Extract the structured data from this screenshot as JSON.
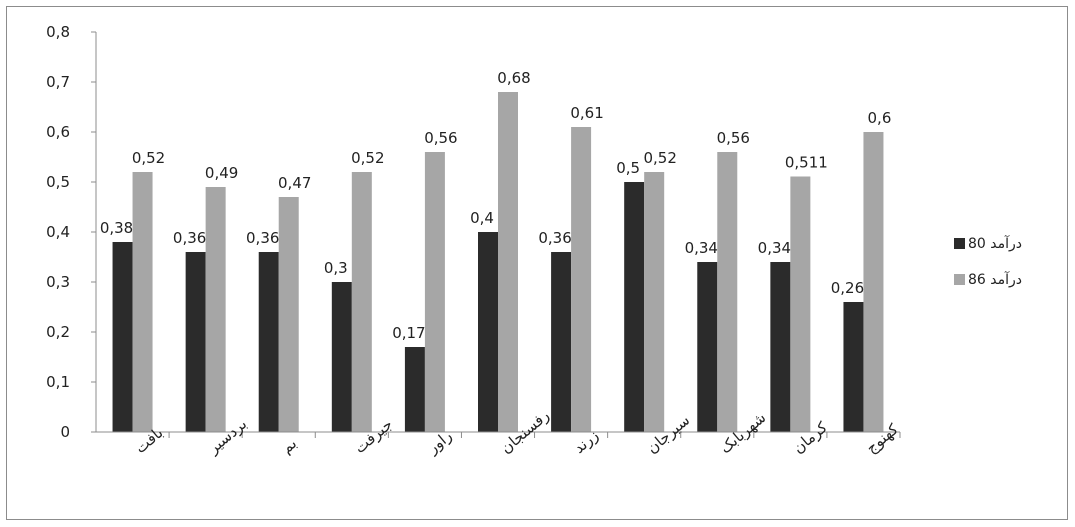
{
  "chart_data": {
    "type": "bar",
    "categories": [
      "بافت",
      "بردسير",
      "بم",
      "جيرفت",
      "راور",
      "رفسنجان",
      "زرند",
      "سيرجان",
      "شهربابک",
      "کرمان",
      "کهنوج"
    ],
    "series": [
      {
        "name": "درآمد 80",
        "values": [
          0.38,
          0.36,
          0.36,
          0.3,
          0.17,
          0.4,
          0.36,
          0.5,
          0.34,
          0.34,
          0.26
        ],
        "labels": [
          "0,38",
          "0,36",
          "0,36",
          "0,3",
          "0,17",
          "0,4",
          "0,36",
          "0,5",
          "0,34",
          "0,34",
          "0,26"
        ],
        "color": "#2b2b2b"
      },
      {
        "name": "درآمد 86",
        "values": [
          0.52,
          0.49,
          0.47,
          0.52,
          0.56,
          0.68,
          0.61,
          0.52,
          0.56,
          0.511,
          0.6
        ],
        "labels": [
          "0,52",
          "0,49",
          "0,47",
          "0,52",
          "0,56",
          "0,68",
          "0,61",
          "0,52",
          "0,56",
          "0,511",
          "0,6"
        ],
        "color": "#a6a6a6"
      }
    ],
    "yticks": [
      "0",
      "0,1",
      "0,2",
      "0,3",
      "0,4",
      "0,5",
      "0,6",
      "0,7",
      "0,8"
    ],
    "ylim": [
      0,
      0.8
    ],
    "grid": false,
    "legend": "right"
  }
}
